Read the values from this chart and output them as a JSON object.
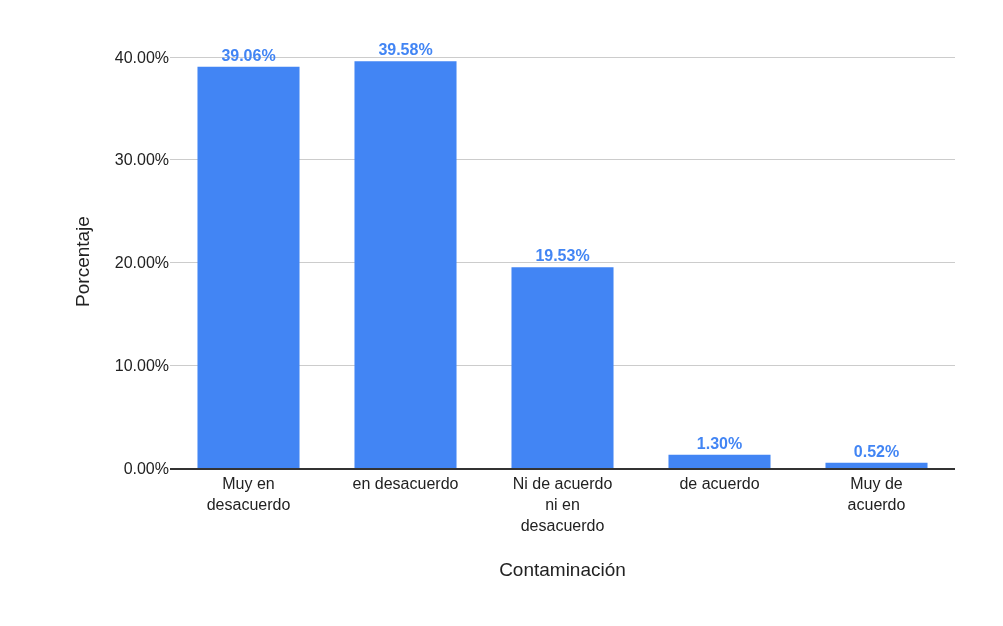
{
  "chart_data": {
    "type": "bar",
    "xlabel": "Contaminación",
    "ylabel": "Porcentaje",
    "categories": [
      "Muy en desacuerdo",
      "en desacuerdo",
      "Ni de acuerdo ni en desacuerdo",
      "de acuerdo",
      "Muy de acuerdo"
    ],
    "values": [
      39.06,
      39.58,
      19.53,
      1.3,
      0.52
    ],
    "value_labels": [
      "39.06%",
      "39.58%",
      "19.53%",
      "1.30%",
      "0.52%"
    ],
    "color": "#4285f4",
    "ylim": [
      0,
      40.2
    ],
    "yticks": [
      {
        "value": 0,
        "label": "0.00%"
      },
      {
        "value": 10,
        "label": "10.00%"
      },
      {
        "value": 20,
        "label": "20.00%"
      },
      {
        "value": 30,
        "label": "30.00%"
      },
      {
        "value": 40,
        "label": "40.00%"
      }
    ],
    "grid": "y"
  }
}
